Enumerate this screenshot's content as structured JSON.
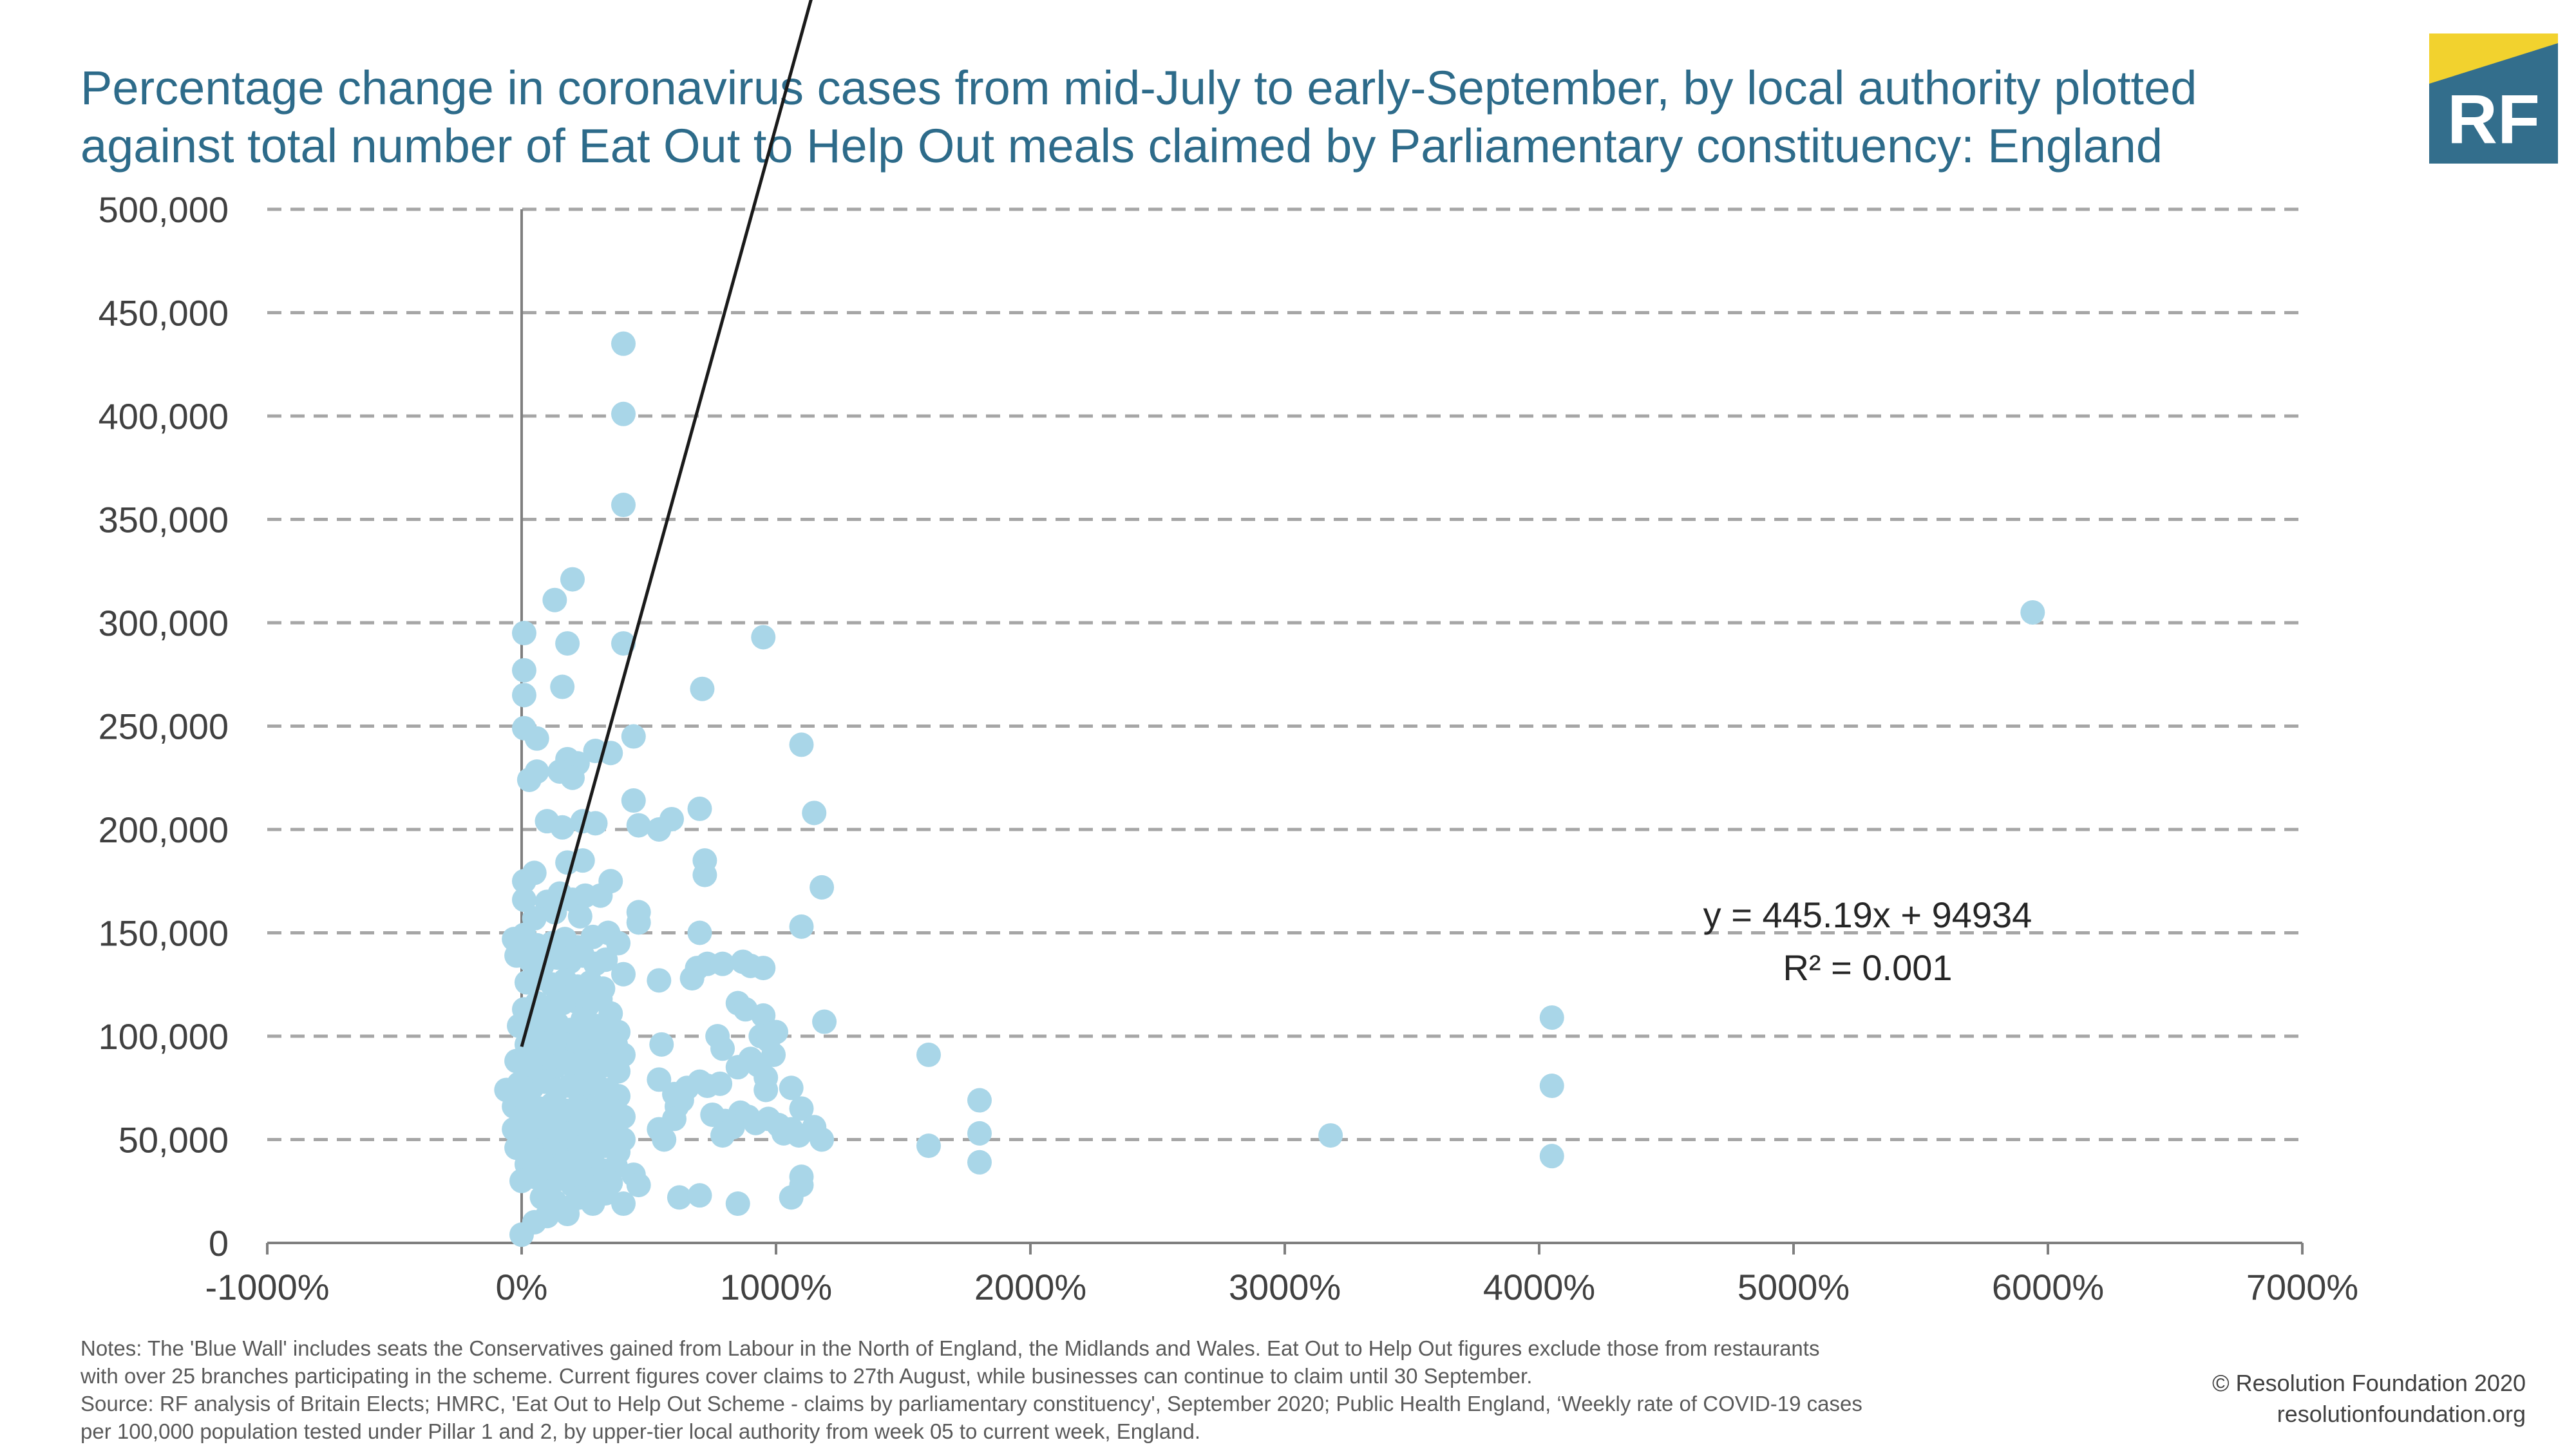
{
  "title_lines": [
    "Percentage change in coronavirus cases from mid-July to early-September, by local authority plotted",
    "against total number of Eat Out to Help Out meals claimed by Parliamentary constituency: England"
  ],
  "logo": {
    "text": "RF",
    "colors": {
      "main": "#336e8c",
      "accent": "#f2d22e"
    }
  },
  "notes_lines": [
    "Notes: The 'Blue Wall' includes seats the Conservatives gained from Labour in the North of England, the Midlands and Wales. Eat Out to Help Out figures exclude those from restaurants",
    "with over 25 branches participating in the scheme. Current figures cover claims to 27th August, while businesses can continue to claim until 30 September.",
    "Source: RF analysis of Britain Elects; HMRC, 'Eat Out to Help Out Scheme - claims by parliamentary constituency', September 2020; Public Health England, ‘Weekly rate of COVID-19 cases",
    "per 100,000 population tested under Pillar 1 and 2, by upper-tier local authority from week 05 to current week, England."
  ],
  "copyright_lines": [
    "© Resolution Foundation 2020",
    "resolutionfoundation.org"
  ],
  "colors": {
    "points": "#a9d6e8",
    "trendline": "#1a1a1a",
    "grid": "#a6a6a6",
    "axis": "#7f7f7f",
    "title": "#2d6b8a"
  },
  "chart_data": {
    "type": "scatter",
    "title": "Percentage change in coronavirus cases from mid-July to early-September, by local authority plotted against total number of Eat Out to Help Out meals claimed by Parliamentary constituency: England",
    "xlabel": "",
    "ylabel": "",
    "x_unit": "percent",
    "xlim": [
      -1000,
      7000
    ],
    "ylim": [
      0,
      500000
    ],
    "x_ticks": [
      -1000,
      0,
      1000,
      2000,
      3000,
      4000,
      5000,
      6000,
      7000
    ],
    "x_tick_labels": [
      "-1000%",
      "0%",
      "1000%",
      "2000%",
      "3000%",
      "4000%",
      "5000%",
      "6000%",
      "7000%"
    ],
    "y_ticks": [
      0,
      50000,
      100000,
      150000,
      200000,
      250000,
      300000,
      350000,
      400000,
      450000,
      500000
    ],
    "y_tick_labels": [
      "0",
      "50,000",
      "100,000",
      "150,000",
      "200,000",
      "250,000",
      "300,000",
      "350,000",
      "400,000",
      "450,000",
      "500,000"
    ],
    "grid": "horizontal dashed",
    "legend": "none",
    "trendline": {
      "equation": "y = 445.19x + 94934",
      "r_squared": "R² = 0.001",
      "slope": 445.19,
      "intercept": 94934,
      "x_range": [
        0,
        5940
      ]
    },
    "points": [
      [
        400,
        435000
      ],
      [
        400,
        401000
      ],
      [
        400,
        357000
      ],
      [
        200,
        321000
      ],
      [
        130,
        311000
      ],
      [
        10,
        295000
      ],
      [
        180,
        290000
      ],
      [
        400,
        290000
      ],
      [
        950,
        293000
      ],
      [
        5940,
        305000
      ],
      [
        10,
        277000
      ],
      [
        10,
        265000
      ],
      [
        160,
        269000
      ],
      [
        710,
        268000
      ],
      [
        10,
        249000
      ],
      [
        60,
        244000
      ],
      [
        440,
        245000
      ],
      [
        1100,
        241000
      ],
      [
        290,
        238000
      ],
      [
        350,
        237000
      ],
      [
        180,
        234000
      ],
      [
        220,
        232000
      ],
      [
        30,
        224000
      ],
      [
        60,
        228000
      ],
      [
        150,
        228000
      ],
      [
        200,
        225000
      ],
      [
        440,
        214000
      ],
      [
        700,
        210000
      ],
      [
        1150,
        208000
      ],
      [
        100,
        204000
      ],
      [
        160,
        201000
      ],
      [
        240,
        204000
      ],
      [
        290,
        203000
      ],
      [
        460,
        202000
      ],
      [
        540,
        200000
      ],
      [
        590,
        205000
      ],
      [
        720,
        185000
      ],
      [
        720,
        178000
      ],
      [
        180,
        184000
      ],
      [
        240,
        185000
      ],
      [
        50,
        179000
      ],
      [
        10,
        175000
      ],
      [
        350,
        175000
      ],
      [
        1180,
        172000
      ],
      [
        10,
        166000
      ],
      [
        100,
        165000
      ],
      [
        150,
        169000
      ],
      [
        200,
        166000
      ],
      [
        250,
        168000
      ],
      [
        310,
        168000
      ],
      [
        460,
        160000
      ],
      [
        460,
        155000
      ],
      [
        50,
        157000
      ],
      [
        130,
        160000
      ],
      [
        230,
        158000
      ],
      [
        700,
        150000
      ],
      [
        1100,
        153000
      ],
      [
        -30,
        147000
      ],
      [
        10,
        149000
      ],
      [
        60,
        144000
      ],
      [
        120,
        145000
      ],
      [
        170,
        147000
      ],
      [
        220,
        143000
      ],
      [
        280,
        148000
      ],
      [
        340,
        150000
      ],
      [
        380,
        145000
      ],
      [
        -20,
        139000
      ],
      [
        30,
        137000
      ],
      [
        80,
        134000
      ],
      [
        140,
        138000
      ],
      [
        190,
        136000
      ],
      [
        240,
        139000
      ],
      [
        290,
        135000
      ],
      [
        330,
        137000
      ],
      [
        400,
        130000
      ],
      [
        540,
        127000
      ],
      [
        670,
        128000
      ],
      [
        690,
        133000
      ],
      [
        730,
        135000
      ],
      [
        790,
        135000
      ],
      [
        870,
        136000
      ],
      [
        900,
        134000
      ],
      [
        950,
        133000
      ],
      [
        20,
        126000
      ],
      [
        70,
        128000
      ],
      [
        120,
        125000
      ],
      [
        170,
        127000
      ],
      [
        220,
        124000
      ],
      [
        270,
        126000
      ],
      [
        320,
        123000
      ],
      [
        850,
        116000
      ],
      [
        880,
        113000
      ],
      [
        950,
        110000
      ],
      [
        1000,
        102000
      ],
      [
        1190,
        107000
      ],
      [
        10,
        113000
      ],
      [
        60,
        116000
      ],
      [
        110,
        114000
      ],
      [
        160,
        116000
      ],
      [
        210,
        117000
      ],
      [
        260,
        115000
      ],
      [
        310,
        118000
      ],
      [
        350,
        111000
      ],
      [
        -10,
        105000
      ],
      [
        40,
        107000
      ],
      [
        90,
        104000
      ],
      [
        140,
        106000
      ],
      [
        190,
        103000
      ],
      [
        240,
        108000
      ],
      [
        290,
        105000
      ],
      [
        340,
        104000
      ],
      [
        380,
        102000
      ],
      [
        550,
        96000
      ],
      [
        770,
        100000
      ],
      [
        790,
        94000
      ],
      [
        940,
        100000
      ],
      [
        970,
        98000
      ],
      [
        990,
        91000
      ],
      [
        1600,
        91000
      ],
      [
        20,
        96000
      ],
      [
        70,
        97000
      ],
      [
        120,
        95000
      ],
      [
        170,
        96000
      ],
      [
        220,
        94000
      ],
      [
        270,
        98000
      ],
      [
        320,
        93000
      ],
      [
        370,
        96000
      ],
      [
        400,
        91000
      ],
      [
        850,
        85000
      ],
      [
        900,
        89000
      ],
      [
        930,
        86000
      ],
      [
        960,
        80000
      ],
      [
        -20,
        88000
      ],
      [
        30,
        86000
      ],
      [
        80,
        89000
      ],
      [
        130,
        85000
      ],
      [
        180,
        87000
      ],
      [
        230,
        84000
      ],
      [
        280,
        88000
      ],
      [
        330,
        86000
      ],
      [
        380,
        83000
      ],
      [
        540,
        79000
      ],
      [
        600,
        72000
      ],
      [
        650,
        75000
      ],
      [
        700,
        78000
      ],
      [
        730,
        76000
      ],
      [
        780,
        77000
      ],
      [
        960,
        74000
      ],
      [
        1060,
        75000
      ],
      [
        1100,
        65000
      ],
      [
        -60,
        74000
      ],
      [
        -10,
        77000
      ],
      [
        40,
        75000
      ],
      [
        90,
        78000
      ],
      [
        140,
        74000
      ],
      [
        190,
        76000
      ],
      [
        240,
        73000
      ],
      [
        290,
        77000
      ],
      [
        340,
        74000
      ],
      [
        380,
        71000
      ],
      [
        610,
        66000
      ],
      [
        630,
        69000
      ],
      [
        750,
        62000
      ],
      [
        800,
        59000
      ],
      [
        830,
        56000
      ],
      [
        860,
        63000
      ],
      [
        890,
        61000
      ],
      [
        920,
        58000
      ],
      [
        970,
        60000
      ],
      [
        1010,
        57000
      ],
      [
        1060,
        55000
      ],
      [
        1800,
        69000
      ],
      [
        -30,
        66000
      ],
      [
        20,
        68000
      ],
      [
        70,
        65000
      ],
      [
        120,
        67000
      ],
      [
        170,
        64000
      ],
      [
        220,
        66000
      ],
      [
        270,
        63000
      ],
      [
        320,
        67000
      ],
      [
        360,
        64000
      ],
      [
        400,
        61000
      ],
      [
        540,
        55000
      ],
      [
        560,
        50000
      ],
      [
        600,
        60000
      ],
      [
        790,
        52000
      ],
      [
        1030,
        53000
      ],
      [
        1090,
        52000
      ],
      [
        1150,
        56000
      ],
      [
        1180,
        50000
      ],
      [
        1600,
        47000
      ],
      [
        1800,
        53000
      ],
      [
        1800,
        39000
      ],
      [
        3180,
        52000
      ],
      [
        4050,
        109000
      ],
      [
        4050,
        76000
      ],
      [
        4050,
        42000
      ],
      [
        -30,
        55000
      ],
      [
        20,
        57000
      ],
      [
        70,
        54000
      ],
      [
        120,
        56000
      ],
      [
        170,
        53000
      ],
      [
        220,
        55000
      ],
      [
        270,
        52000
      ],
      [
        320,
        56000
      ],
      [
        360,
        53000
      ],
      [
        400,
        50000
      ],
      [
        -20,
        46000
      ],
      [
        30,
        48000
      ],
      [
        80,
        45000
      ],
      [
        130,
        47000
      ],
      [
        180,
        44000
      ],
      [
        230,
        46000
      ],
      [
        280,
        43000
      ],
      [
        330,
        47000
      ],
      [
        380,
        44000
      ],
      [
        20,
        38000
      ],
      [
        70,
        40000
      ],
      [
        120,
        37000
      ],
      [
        170,
        39000
      ],
      [
        220,
        36000
      ],
      [
        270,
        38000
      ],
      [
        320,
        35000
      ],
      [
        370,
        37000
      ],
      [
        0,
        30000
      ],
      [
        50,
        32000
      ],
      [
        100,
        29000
      ],
      [
        150,
        31000
      ],
      [
        200,
        28000
      ],
      [
        250,
        30000
      ],
      [
        300,
        27000
      ],
      [
        350,
        29000
      ],
      [
        440,
        33000
      ],
      [
        460,
        28000
      ],
      [
        1100,
        32000
      ],
      [
        1100,
        28000
      ],
      [
        80,
        22000
      ],
      [
        130,
        20000
      ],
      [
        180,
        17000
      ],
      [
        230,
        22000
      ],
      [
        280,
        19000
      ],
      [
        330,
        24000
      ],
      [
        400,
        19000
      ],
      [
        620,
        22000
      ],
      [
        700,
        23000
      ],
      [
        850,
        19000
      ],
      [
        1060,
        22000
      ],
      [
        50,
        10000
      ],
      [
        100,
        13000
      ],
      [
        180,
        14000
      ],
      [
        0,
        4000
      ]
    ]
  }
}
